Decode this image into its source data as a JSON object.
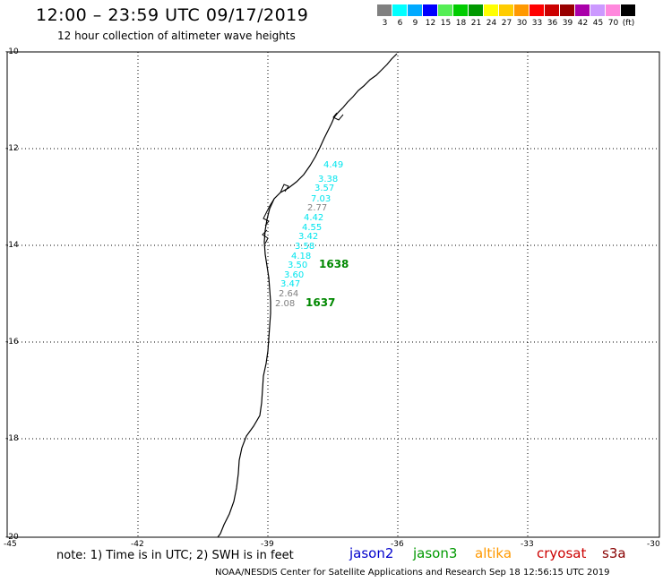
{
  "header": {
    "title": "12:00 – 23:59 UTC 09/17/2019",
    "subtitle": "12 hour collection of altimeter wave heights"
  },
  "legend": {
    "unit": "(ft)",
    "items": [
      {
        "label": "3",
        "color": "#808080"
      },
      {
        "label": "6",
        "color": "#00ffff"
      },
      {
        "label": "9",
        "color": "#00aaff"
      },
      {
        "label": "12",
        "color": "#0000ff"
      },
      {
        "label": "15",
        "color": "#55ee55"
      },
      {
        "label": "18",
        "color": "#00cc00"
      },
      {
        "label": "21",
        "color": "#009900"
      },
      {
        "label": "24",
        "color": "#ffff00"
      },
      {
        "label": "27",
        "color": "#ffcc00"
      },
      {
        "label": "30",
        "color": "#ff9900"
      },
      {
        "label": "33",
        "color": "#ff0000"
      },
      {
        "label": "36",
        "color": "#cc0000"
      },
      {
        "label": "39",
        "color": "#990000"
      },
      {
        "label": "42",
        "color": "#aa00aa"
      },
      {
        "label": "45",
        "color": "#cc99ff"
      },
      {
        "label": "70",
        "color": "#ff88dd"
      },
      {
        "label": "",
        "color": "#000000"
      }
    ]
  },
  "map": {
    "lat_ticks": [
      "-10",
      "-12",
      "-14",
      "-16",
      "-18",
      "-20"
    ],
    "lon_ticks": [
      "-45",
      "-42",
      "-39",
      "-36",
      "-33",
      "-30"
    ],
    "wave_heights": [
      {
        "value": "4.49",
        "color": "#00e5ee"
      },
      {
        "value": "3.38",
        "color": "#00e5ee"
      },
      {
        "value": "3.57",
        "color": "#00e5ee"
      },
      {
        "value": "7.03",
        "color": "#00e5ee"
      },
      {
        "value": "2.77",
        "color": "#808080"
      },
      {
        "value": "4.42",
        "color": "#00e5ee"
      },
      {
        "value": "4.55",
        "color": "#00e5ee"
      },
      {
        "value": "3.42",
        "color": "#00e5ee"
      },
      {
        "value": "3.58",
        "color": "#00e5ee"
      },
      {
        "value": "4.18",
        "color": "#00e5ee"
      },
      {
        "value": "3.50",
        "color": "#00e5ee"
      },
      {
        "value": "3.60",
        "color": "#00e5ee"
      },
      {
        "value": "3.47",
        "color": "#00e5ee"
      },
      {
        "value": "2.64",
        "color": "#808080"
      },
      {
        "value": "2.08",
        "color": "#808080"
      }
    ],
    "pass_times": [
      {
        "label": "1638",
        "color": "#008800"
      },
      {
        "label": "1637",
        "color": "#008800"
      }
    ]
  },
  "note": "note: 1) Time is in UTC; 2) SWH is in feet",
  "satellites": [
    {
      "name": "jason2",
      "color": "#0000cc"
    },
    {
      "name": "jason3",
      "color": "#009900"
    },
    {
      "name": "altika",
      "color": "#ff9900"
    },
    {
      "name": "cryosat",
      "color": "#cc0000"
    },
    {
      "name": "s3a",
      "color": "#880000"
    }
  ],
  "footer": "NOAA/NESDIS Center for Satellite Applications and Research   Sep 18 12:56:15 UTC 2019"
}
